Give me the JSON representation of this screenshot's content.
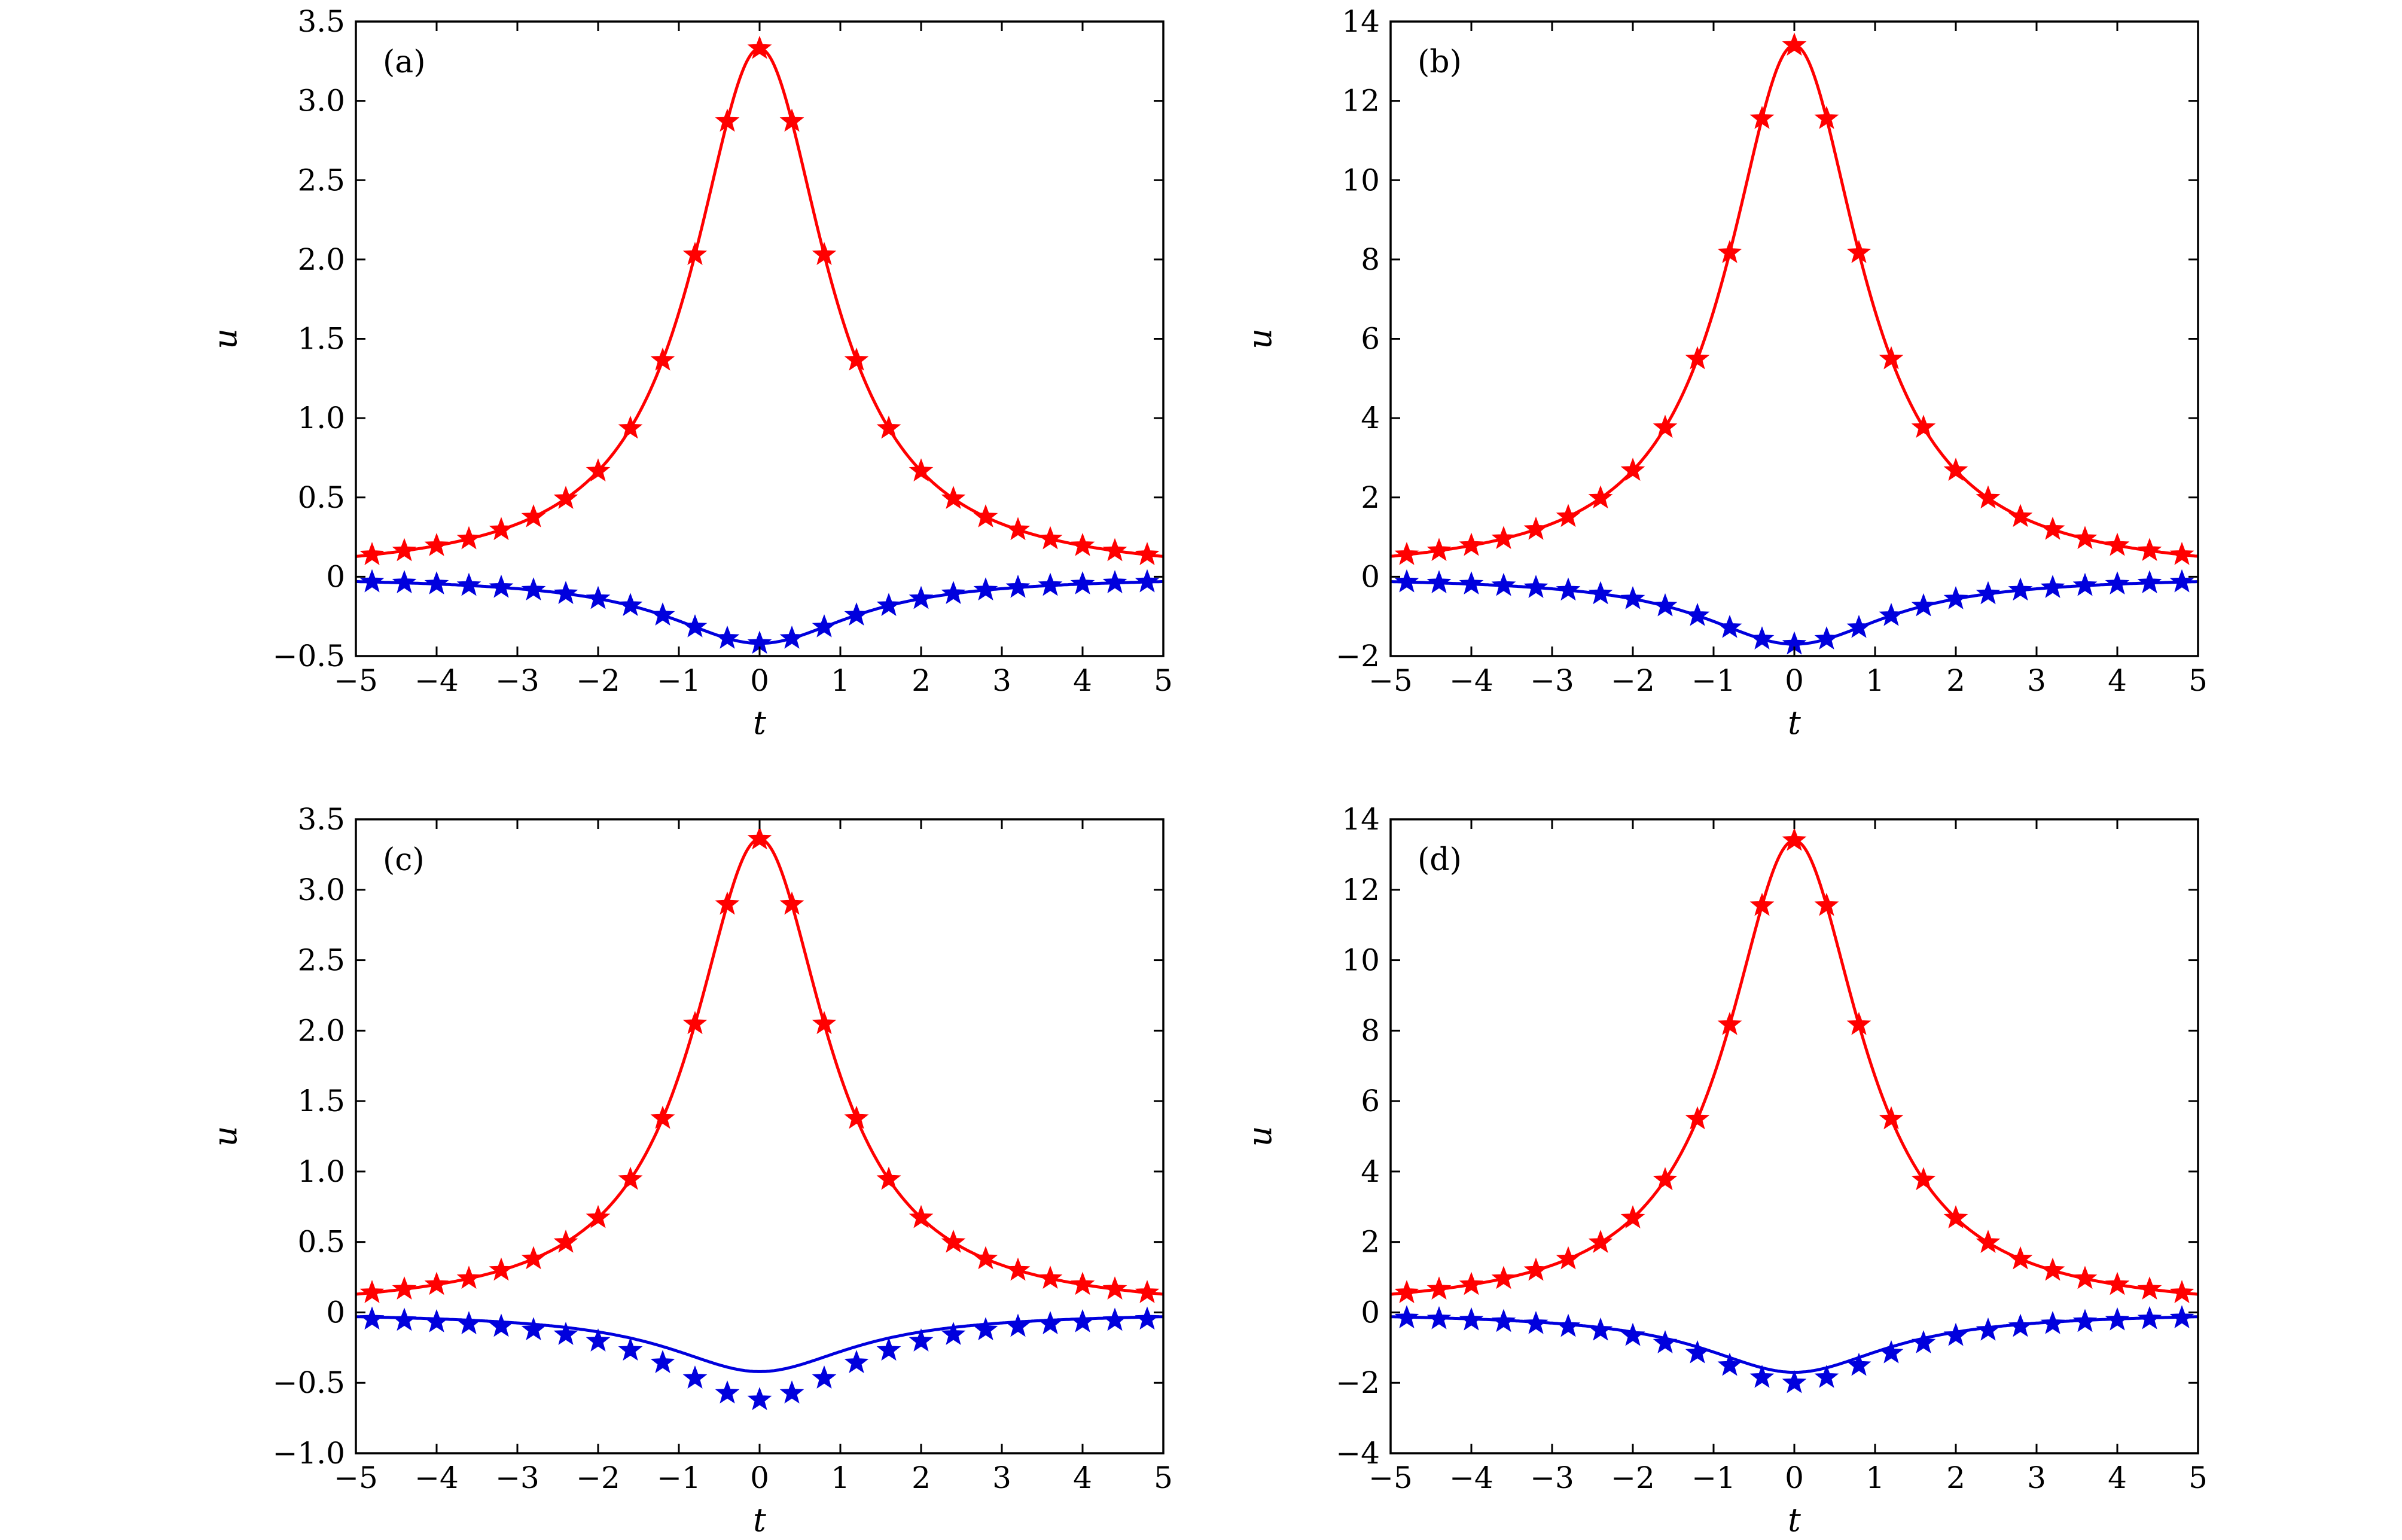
{
  "colors": {
    "series_red": "#ff0000",
    "series_blue": "#0000dd",
    "axis": "#000000"
  },
  "chart_data": [
    {
      "id": "a",
      "type": "line",
      "label": "(a)",
      "xlabel": "t",
      "ylabel": "u",
      "xlim": [
        -5,
        5
      ],
      "ylim": [
        -0.5,
        3.5
      ],
      "xticks": [
        -5,
        -4,
        -3,
        -2,
        -1,
        0,
        1,
        2,
        3,
        4,
        5
      ],
      "xtick_labels": [
        "−5",
        "−4",
        "−3",
        "−2",
        "−1",
        "0",
        "1",
        "2",
        "3",
        "4",
        "5"
      ],
      "yticks": [
        -0.5,
        0,
        0.5,
        1,
        1.5,
        2,
        2.5,
        3,
        3.5
      ],
      "ytick_labels": [
        "−0.5",
        "0",
        "0.5",
        "1.0",
        "1.5",
        "2.0",
        "2.5",
        "3.0",
        "3.5"
      ],
      "series": [
        {
          "name": "red solid line (exact)",
          "color": "#ff0000",
          "style": "line",
          "amplitude": 3.33,
          "width": 1.0
        },
        {
          "name": "red stars (numerical)",
          "color": "#ff0000",
          "style": "stars",
          "amplitude": 3.33,
          "width": 1.0
        },
        {
          "name": "blue solid line (exact)",
          "color": "#0000dd",
          "style": "line",
          "amplitude": -0.42,
          "width": 1.4
        },
        {
          "name": "blue stars (numerical)",
          "color": "#0000dd",
          "style": "stars",
          "amplitude": -0.42,
          "width": 1.4
        }
      ]
    },
    {
      "id": "b",
      "type": "line",
      "label": "(b)",
      "xlabel": "t",
      "ylabel": "u",
      "xlim": [
        -5,
        5
      ],
      "ylim": [
        -2,
        14
      ],
      "xticks": [
        -5,
        -4,
        -3,
        -2,
        -1,
        0,
        1,
        2,
        3,
        4,
        5
      ],
      "xtick_labels": [
        "−5",
        "−4",
        "−3",
        "−2",
        "−1",
        "0",
        "1",
        "2",
        "3",
        "4",
        "5"
      ],
      "yticks": [
        -2,
        0,
        2,
        4,
        6,
        8,
        10,
        12,
        14
      ],
      "ytick_labels": [
        "−2",
        "0",
        "2",
        "4",
        "6",
        "8",
        "10",
        "12",
        "14"
      ],
      "series": [
        {
          "name": "red solid line (exact)",
          "color": "#ff0000",
          "style": "line",
          "amplitude": 13.4,
          "width": 1.0
        },
        {
          "name": "red stars (numerical)",
          "color": "#ff0000",
          "style": "stars",
          "amplitude": 13.4,
          "width": 1.0
        },
        {
          "name": "blue solid line (exact)",
          "color": "#0000dd",
          "style": "line",
          "amplitude": -1.7,
          "width": 1.4
        },
        {
          "name": "blue stars (numerical)",
          "color": "#0000dd",
          "style": "stars",
          "amplitude": -1.7,
          "width": 1.4
        }
      ]
    },
    {
      "id": "c",
      "type": "line",
      "label": "(c)",
      "xlabel": "t",
      "ylabel": "u",
      "xlim": [
        -5,
        5
      ],
      "ylim": [
        -1,
        3.5
      ],
      "xticks": [
        -5,
        -4,
        -3,
        -2,
        -1,
        0,
        1,
        2,
        3,
        4,
        5
      ],
      "xtick_labels": [
        "−5",
        "−4",
        "−3",
        "−2",
        "−1",
        "0",
        "1",
        "2",
        "3",
        "4",
        "5"
      ],
      "yticks": [
        -1,
        -0.5,
        0,
        0.5,
        1,
        1.5,
        2,
        2.5,
        3,
        3.5
      ],
      "ytick_labels": [
        "−1.0",
        "−0.5",
        "0",
        "0.5",
        "1.0",
        "1.5",
        "2.0",
        "2.5",
        "3.0",
        "3.5"
      ],
      "series": [
        {
          "name": "red solid line (exact)",
          "color": "#ff0000",
          "style": "line",
          "amplitude": 3.36,
          "width": 1.0
        },
        {
          "name": "red stars (numerical)",
          "color": "#ff0000",
          "style": "stars",
          "amplitude": 3.36,
          "width": 1.0
        },
        {
          "name": "blue solid line (exact)",
          "color": "#0000dd",
          "style": "line",
          "amplitude": -0.42,
          "width": 1.4
        },
        {
          "name": "blue stars (numerical)",
          "color": "#0000dd",
          "style": "stars",
          "amplitude": -0.62,
          "width": 1.4
        }
      ]
    },
    {
      "id": "d",
      "type": "line",
      "label": "(d)",
      "xlabel": "t",
      "ylabel": "u",
      "xlim": [
        -5,
        5
      ],
      "ylim": [
        -4,
        14
      ],
      "xticks": [
        -5,
        -4,
        -3,
        -2,
        -1,
        0,
        1,
        2,
        3,
        4,
        5
      ],
      "xtick_labels": [
        "−5",
        "−4",
        "−3",
        "−2",
        "−1",
        "0",
        "1",
        "2",
        "3",
        "4",
        "5"
      ],
      "yticks": [
        -4,
        -2,
        0,
        2,
        4,
        6,
        8,
        10,
        12,
        14
      ],
      "ytick_labels": [
        "−4",
        "−2",
        "0",
        "2",
        "4",
        "6",
        "8",
        "10",
        "12",
        "14"
      ],
      "series": [
        {
          "name": "red solid line (exact)",
          "color": "#ff0000",
          "style": "line",
          "amplitude": 13.4,
          "width": 1.0
        },
        {
          "name": "red stars (numerical)",
          "color": "#ff0000",
          "style": "stars",
          "amplitude": 13.4,
          "width": 1.0
        },
        {
          "name": "blue solid line (exact)",
          "color": "#0000dd",
          "style": "line",
          "amplitude": -1.7,
          "width": 1.4
        },
        {
          "name": "blue stars (numerical)",
          "color": "#0000dd",
          "style": "stars",
          "amplitude": -2.0,
          "width": 1.4
        }
      ]
    }
  ]
}
